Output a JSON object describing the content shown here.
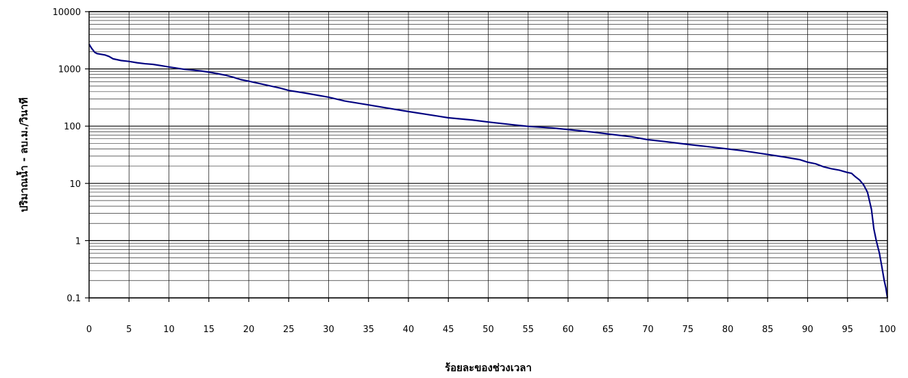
{
  "chart_data": {
    "type": "line",
    "xlabel": "ร้อยละของช่วงเวลา",
    "ylabel": "ปริมาณน้ำ - ลบ.ม./วินาที",
    "xlim": [
      0,
      100
    ],
    "ylim": [
      0.1,
      10000
    ],
    "yscale": "log",
    "grid": true,
    "x_ticks": [
      "0",
      "5",
      "10",
      "15",
      "20",
      "25",
      "30",
      "35",
      "40",
      "45",
      "50",
      "55",
      "60",
      "65",
      "70",
      "75",
      "80",
      "85",
      "90",
      "95",
      "100"
    ],
    "y_ticks": [
      "0.1",
      "1",
      "10",
      "100",
      "1000",
      "10000"
    ],
    "line_color": "#000080",
    "series": [
      {
        "x": [
          0,
          0.3,
          0.7,
          1,
          2,
          2.5,
          3,
          4,
          5,
          6,
          7,
          8,
          9,
          10,
          11,
          12,
          13,
          14,
          15,
          16,
          17,
          18,
          19,
          20,
          22,
          24,
          25,
          27,
          30,
          32,
          35,
          38,
          40,
          43,
          45,
          48,
          50,
          53,
          55,
          58,
          60,
          63,
          65,
          68,
          70,
          72,
          75,
          78,
          80,
          82,
          85,
          87,
          89,
          90,
          91,
          92,
          93,
          94,
          95,
          95.5,
          96,
          96.5,
          97,
          97.5,
          98,
          98.3,
          98.6,
          99,
          99.3,
          99.6,
          99.8,
          100
        ],
        "y": [
          2700,
          2300,
          1950,
          1850,
          1750,
          1650,
          1500,
          1400,
          1350,
          1280,
          1230,
          1200,
          1140,
          1080,
          1030,
          980,
          950,
          920,
          880,
          830,
          780,
          720,
          650,
          610,
          530,
          460,
          420,
          380,
          320,
          275,
          235,
          200,
          180,
          155,
          140,
          128,
          118,
          106,
          99,
          93,
          87,
          79,
          73,
          65,
          58,
          54,
          48,
          43,
          40,
          37,
          32,
          29,
          26,
          23.5,
          22,
          19.5,
          18,
          17,
          15.5,
          15,
          13,
          11.5,
          9.5,
          7,
          3.5,
          1.6,
          1.0,
          0.6,
          0.35,
          0.2,
          0.15,
          0.1
        ]
      }
    ]
  }
}
